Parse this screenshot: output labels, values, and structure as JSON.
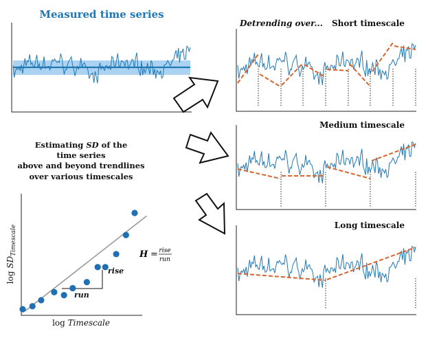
{
  "measured": {
    "title": "Measured time series"
  },
  "panels": {
    "short": {
      "prefix": "Detrending over...",
      "title": "Short timescale"
    },
    "medium": {
      "title": "Medium timescale"
    },
    "long": {
      "title": "Long timescale"
    }
  },
  "explanation": {
    "line1_pre": "Estimating ",
    "line1_sd": "SD",
    "line1_post": " of the",
    "line2": "time series",
    "line3": "above and beyond trendlines",
    "line4": "over various timescales"
  },
  "hurst": {
    "lhs": "H",
    "eq": "=",
    "num": "rise",
    "den": "run"
  },
  "loglog": {
    "xlabel_pre": "log ",
    "xlabel_it": "Timescale",
    "ylabel_pre": "log ",
    "ylabel_it": "SD",
    "ylabel_sub": "Timescale",
    "rise_label": "rise",
    "run_label": "run"
  },
  "colors": {
    "series": "#1f77b4",
    "trend": "#d9622b",
    "point": "#1f6fb4",
    "band": "#9ccbee"
  },
  "chart_data": {
    "type": "scatter",
    "xlabel": "log Timescale",
    "ylabel": "log SD_Timescale",
    "points": [
      {
        "x": 0.0,
        "y": 0.02
      },
      {
        "x": 0.09,
        "y": 0.05
      },
      {
        "x": 0.17,
        "y": 0.11
      },
      {
        "x": 0.29,
        "y": 0.19
      },
      {
        "x": 0.38,
        "y": 0.16
      },
      {
        "x": 0.46,
        "y": 0.23
      },
      {
        "x": 0.59,
        "y": 0.29
      },
      {
        "x": 0.69,
        "y": 0.44
      },
      {
        "x": 0.76,
        "y": 0.44
      },
      {
        "x": 0.86,
        "y": 0.57
      },
      {
        "x": 0.95,
        "y": 0.76
      },
      {
        "x": 1.03,
        "y": 0.98
      }
    ],
    "fit_line": [
      [
        0.02,
        0.0
      ],
      [
        1.14,
        0.95
      ]
    ]
  }
}
